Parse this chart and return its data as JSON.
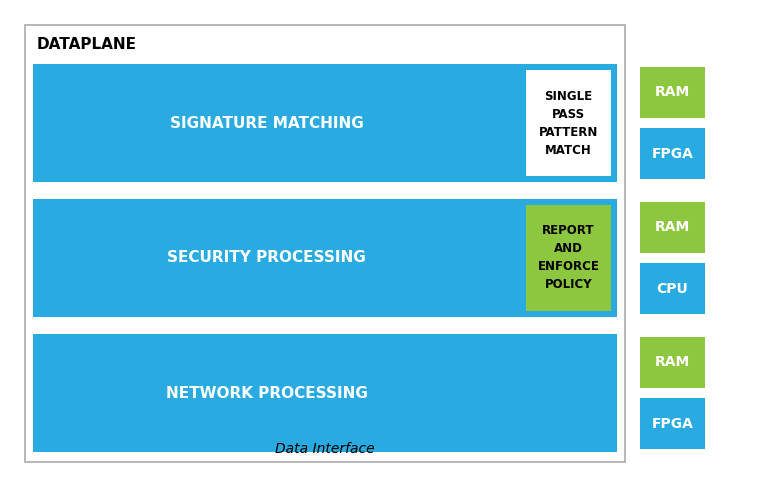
{
  "title": "DATAPLANE",
  "bg_color": "#ffffff",
  "blue_color": "#29ABE2",
  "green_color": "#8DC63F",
  "white_color": "#ffffff",
  "dark_text": "#000000",
  "white_text": "#ffffff",
  "fig_width": 7.83,
  "fig_height": 4.82,
  "dpi": 100,
  "rows": [
    {
      "label": "SIGNATURE MATCHING",
      "inset_label": "SINGLE\nPASS\nPATTERN\nMATCH",
      "inset_bg": "#ffffff",
      "inset_text_color": "#000000",
      "right_boxes": [
        {
          "label": "RAM",
          "color": "#8DC63F",
          "text_color": "#ffffff"
        },
        {
          "label": "FPGA",
          "color": "#29ABE2",
          "text_color": "#ffffff"
        }
      ]
    },
    {
      "label": "SECURITY PROCESSING",
      "inset_label": "REPORT\nAND\nENFORCE\nPOLICY",
      "inset_bg": "#8DC63F",
      "inset_text_color": "#000000",
      "right_boxes": [
        {
          "label": "RAM",
          "color": "#8DC63F",
          "text_color": "#ffffff"
        },
        {
          "label": "CPU",
          "color": "#29ABE2",
          "text_color": "#ffffff"
        }
      ]
    },
    {
      "label": "NETWORK PROCESSING",
      "inset_label": null,
      "inset_bg": null,
      "inset_text_color": null,
      "right_boxes": [
        {
          "label": "RAM",
          "color": "#8DC63F",
          "text_color": "#ffffff"
        },
        {
          "label": "FPGA",
          "color": "#29ABE2",
          "text_color": "#ffffff"
        }
      ]
    }
  ],
  "footer_text": "Data Interface"
}
